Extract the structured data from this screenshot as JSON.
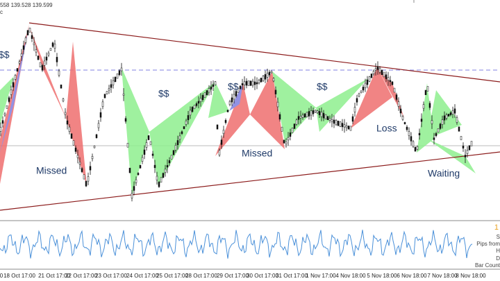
{
  "header": {
    "quote": "558 139.528 139.599",
    "sub": "c"
  },
  "annotations": {
    "profit": [
      "$$",
      "$$",
      "$$",
      "$$"
    ],
    "missed": [
      "Missed",
      "Missed"
    ],
    "loss": "Loss",
    "waiting": "Waiting"
  },
  "x_axis": {
    "labels": [
      "0",
      "18 Oct 17:00",
      "21 Oct 17:00",
      "22 Oct 17:00",
      "23 Oct 17:00",
      "24 Oct 17:00",
      "25 Oct 17:00",
      "28 Oct 17:00",
      "29 Oct 17:00",
      "30 Oct 17:00",
      "31 Oct 17:00",
      "1 Nov 17:00",
      "4 Nov 18:00",
      "5 Nov 18:00",
      "6 Nov 18:00",
      "7 Nov 18:00",
      "8 Nov 18:00"
    ]
  },
  "info_panel": {
    "value": "1",
    "lines": [
      "S",
      "Pips from",
      "H",
      "D",
      "Bar Count"
    ]
  }
}
